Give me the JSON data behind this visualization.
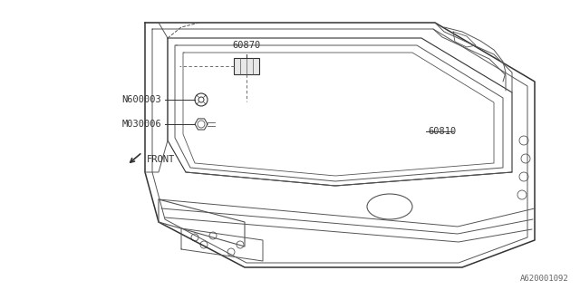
{
  "bg_color": "#ffffff",
  "line_color": "#555555",
  "fig_width": 6.4,
  "fig_height": 3.2,
  "dpi": 100,
  "label_fontsize": 7.5,
  "watermark": "A620001092",
  "watermark_fontsize": 6.5,
  "front_arrow_text": "FRONT",
  "front_arrow_fontsize": 7.5
}
